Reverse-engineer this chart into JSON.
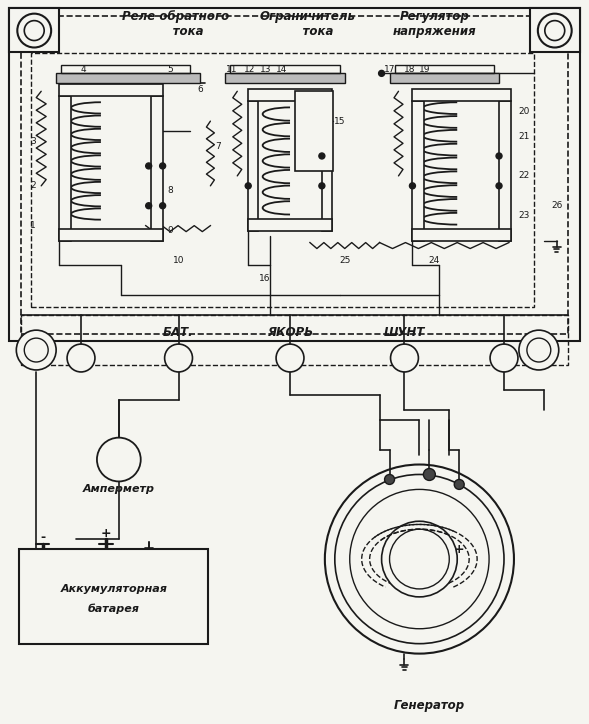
{
  "bg_color": "#f5f5f0",
  "line_color": "#1a1a1a",
  "labels": {
    "relay": "Реле обратного\n      тока",
    "limiter": "Ограничитель\n     тока",
    "regulator": "Регулятор\nнапряжения",
    "bat_terminal": "БАТ.",
    "anchor_terminal": "ЯКОРЬ",
    "shunt_terminal": "ШУНТ",
    "ammeter": "Амперметр",
    "battery_line1": "Аккумуляторная",
    "battery_line2": "батарея",
    "generator": "Генератор"
  },
  "figsize": [
    5.89,
    7.24
  ],
  "dpi": 100
}
